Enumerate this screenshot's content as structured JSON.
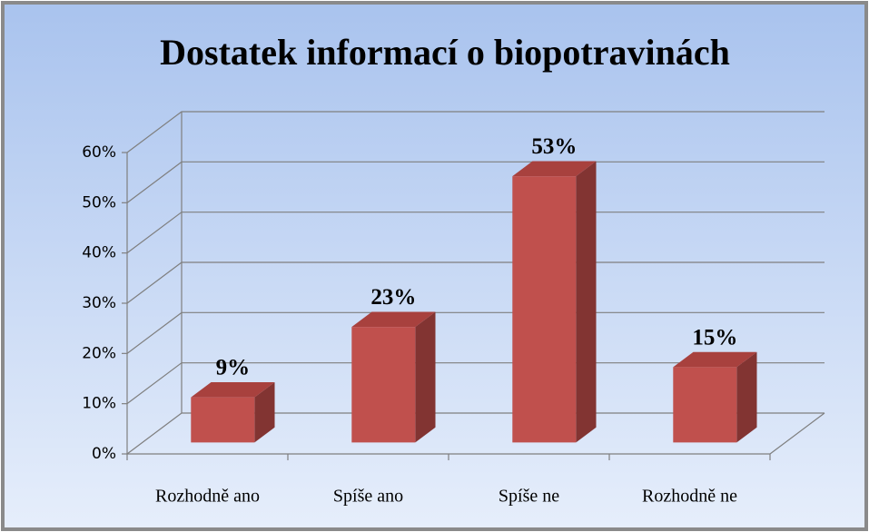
{
  "chart_data": {
    "type": "bar3d",
    "title": "Dostatek informací o biopotravinách",
    "categories": [
      "Rozhodně ano",
      "Spíše ano",
      "Spíše ne",
      "Rozhodně ne"
    ],
    "values": [
      9,
      23,
      53,
      15
    ],
    "value_labels": [
      "9%",
      "23%",
      "53%",
      "15%"
    ],
    "color": "#c0504d",
    "ylim": [
      0,
      60
    ],
    "yticks": [
      {
        "value": 0,
        "label": "0%"
      },
      {
        "value": 10,
        "label": "10%"
      },
      {
        "value": 20,
        "label": "20%"
      },
      {
        "value": 30,
        "label": "30%"
      },
      {
        "value": 40,
        "label": "40%"
      },
      {
        "value": 50,
        "label": "50%"
      },
      {
        "value": 60,
        "label": "60%"
      }
    ],
    "grid": true
  }
}
